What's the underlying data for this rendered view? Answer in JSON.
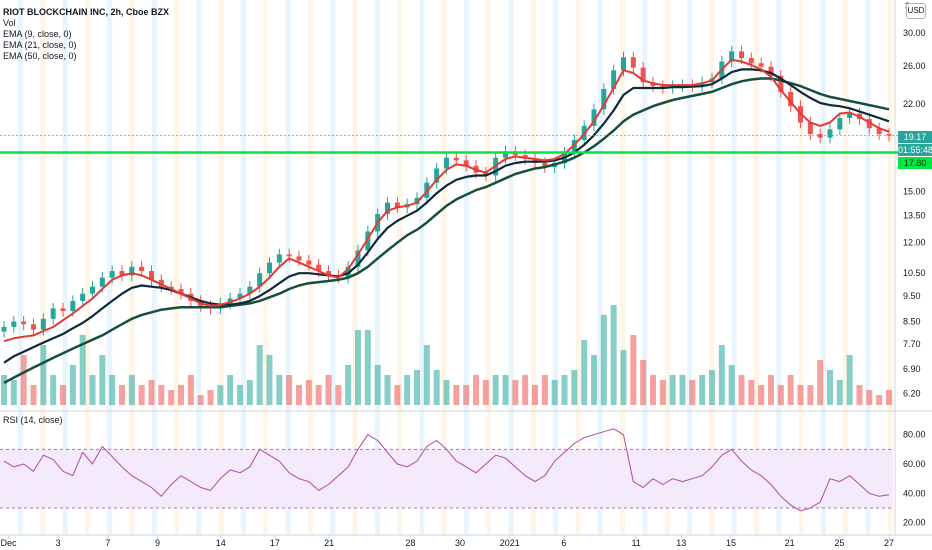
{
  "header": {
    "title": "RIOT BLOCKCHAIN INC, 2h, Cboe BZX",
    "vol_label": "Vol",
    "ema1_label": "EMA (9, close, 0)",
    "ema2_label": "EMA (21, close, 0)",
    "ema3_label": "EMA (50, close, 0)",
    "currency_button": "USD",
    "top_axis_partial": "3"
  },
  "rsi": {
    "label": "RSI (14, close)",
    "ticks": [
      "80.00",
      "60.00",
      "40.00",
      "20.00"
    ],
    "band_upper": 70,
    "band_lower": 30
  },
  "price_axis": {
    "ticks": [
      "30.00",
      "26.00",
      "22.00",
      "19.17",
      "17.80",
      "15.00",
      "13.50",
      "12.00",
      "10.50",
      "9.50",
      "8.50",
      "7.70",
      "6.90",
      "6.20"
    ],
    "last_price": "19.17",
    "countdown": "01:55:48",
    "horizontal_line_value": "17.80"
  },
  "time_axis": {
    "ticks": [
      "Dec",
      "3",
      "7",
      "9",
      "14",
      "17",
      "21",
      "28",
      "30",
      "2021",
      "6",
      "11",
      "13",
      "15",
      "21",
      "25",
      "27"
    ]
  },
  "colors": {
    "up": "#26a69a",
    "down": "#ef5350",
    "ema9": "#e53935",
    "ema21": "#0d2a3a",
    "ema50": "#174f3e",
    "hline": "#00e640",
    "rsi_line": "#b04aa5",
    "rsi_band": "#f2e6fb"
  },
  "chart_data": {
    "type": "line",
    "title": "RIOT BLOCKCHAIN INC, 2h, Cboe BZX",
    "y_scale": "log",
    "ylim": [
      5.9,
      31.5
    ],
    "price": [
      8.3,
      8.5,
      8.4,
      8.2,
      8.6,
      9.0,
      8.9,
      9.3,
      9.6,
      9.9,
      10.3,
      10.6,
      10.4,
      10.8,
      10.6,
      10.2,
      9.9,
      9.8,
      9.6,
      9.3,
      9.1,
      9.0,
      9.2,
      9.4,
      9.6,
      9.9,
      10.5,
      11.0,
      11.4,
      11.3,
      11.1,
      10.9,
      10.6,
      10.4,
      10.3,
      10.8,
      11.6,
      12.6,
      13.6,
      14.3,
      14.0,
      14.2,
      14.6,
      15.6,
      16.6,
      17.4,
      17.2,
      16.8,
      16.3,
      16.1,
      17.4,
      17.9,
      17.6,
      17.3,
      17.0,
      16.7,
      17.0,
      17.8,
      18.8,
      20.0,
      21.5,
      23.5,
      25.5,
      27.0,
      25.8,
      24.2,
      23.8,
      23.6,
      23.8,
      23.9,
      23.8,
      24.2,
      24.6,
      26.5,
      27.7,
      26.9,
      26.3,
      25.9,
      24.9,
      23.2,
      21.8,
      20.3,
      19.3,
      19.0,
      19.7,
      20.7,
      21.1,
      20.6,
      19.8,
      19.3,
      19.17
    ],
    "ema9": [
      7.8,
      7.9,
      7.95,
      8.0,
      8.15,
      8.3,
      8.55,
      8.8,
      9.1,
      9.4,
      9.8,
      10.2,
      10.4,
      10.5,
      10.4,
      10.2,
      10.0,
      9.8,
      9.6,
      9.4,
      9.2,
      9.1,
      9.15,
      9.25,
      9.4,
      9.6,
      9.9,
      10.3,
      10.8,
      11.2,
      11.0,
      10.8,
      10.6,
      10.4,
      10.3,
      10.7,
      11.4,
      12.2,
      13.1,
      13.8,
      14.0,
      14.1,
      14.3,
      15.0,
      15.8,
      16.5,
      16.9,
      16.8,
      16.5,
      16.3,
      16.8,
      17.3,
      17.5,
      17.4,
      17.3,
      17.2,
      17.3,
      17.7,
      18.4,
      19.3,
      20.4,
      21.9,
      23.6,
      25.5,
      25.2,
      24.4,
      24.1,
      23.9,
      23.9,
      23.9,
      23.9,
      24.1,
      24.4,
      25.6,
      26.7,
      26.5,
      26.1,
      25.6,
      24.8,
      23.4,
      22.2,
      21.1,
      20.3,
      20.0,
      20.3,
      21.1,
      21.2,
      20.8,
      20.3,
      19.8,
      19.5
    ],
    "ema21": [
      7.1,
      7.3,
      7.45,
      7.6,
      7.75,
      7.9,
      8.05,
      8.25,
      8.45,
      8.7,
      9.0,
      9.3,
      9.6,
      9.85,
      9.95,
      9.9,
      9.85,
      9.75,
      9.6,
      9.45,
      9.3,
      9.2,
      9.15,
      9.15,
      9.2,
      9.3,
      9.5,
      9.75,
      10.05,
      10.35,
      10.5,
      10.5,
      10.45,
      10.4,
      10.35,
      10.5,
      10.9,
      11.5,
      12.2,
      12.8,
      13.2,
      13.5,
      13.8,
      14.3,
      14.9,
      15.4,
      15.8,
      16.0,
      16.1,
      16.1,
      16.4,
      16.8,
      17.0,
      17.1,
      17.1,
      17.1,
      17.2,
      17.4,
      17.8,
      18.4,
      19.2,
      20.2,
      21.4,
      22.9,
      23.6,
      23.6,
      23.6,
      23.6,
      23.7,
      23.7,
      23.75,
      23.8,
      24.0,
      24.6,
      25.3,
      25.6,
      25.6,
      25.5,
      25.2,
      24.6,
      23.9,
      23.2,
      22.6,
      22.1,
      21.9,
      21.8,
      21.6,
      21.3,
      21.0,
      20.7,
      20.4
    ],
    "ema50": [
      6.5,
      6.65,
      6.8,
      6.95,
      7.1,
      7.25,
      7.4,
      7.55,
      7.7,
      7.85,
      8.0,
      8.2,
      8.4,
      8.6,
      8.75,
      8.85,
      8.95,
      9.0,
      9.05,
      9.05,
      9.05,
      9.05,
      9.05,
      9.1,
      9.15,
      9.2,
      9.3,
      9.45,
      9.6,
      9.8,
      9.95,
      10.05,
      10.1,
      10.15,
      10.2,
      10.3,
      10.5,
      10.8,
      11.2,
      11.6,
      12.0,
      12.4,
      12.7,
      13.1,
      13.6,
      14.1,
      14.5,
      14.8,
      15.1,
      15.3,
      15.6,
      15.9,
      16.2,
      16.4,
      16.6,
      16.7,
      16.9,
      17.1,
      17.4,
      17.8,
      18.3,
      18.9,
      19.6,
      20.4,
      21.0,
      21.4,
      21.8,
      22.1,
      22.4,
      22.6,
      22.8,
      23.0,
      23.2,
      23.6,
      24.0,
      24.3,
      24.5,
      24.6,
      24.6,
      24.4,
      24.1,
      23.8,
      23.4,
      23.0,
      22.7,
      22.5,
      22.3,
      22.1,
      21.9,
      21.7,
      21.5
    ],
    "rsi": [
      62,
      58,
      60,
      55,
      66,
      63,
      55,
      52,
      68,
      60,
      72,
      65,
      58,
      52,
      48,
      44,
      38,
      46,
      52,
      48,
      44,
      42,
      50,
      56,
      54,
      58,
      70,
      66,
      62,
      54,
      50,
      48,
      42,
      46,
      52,
      58,
      70,
      80,
      76,
      68,
      60,
      58,
      62,
      72,
      76,
      70,
      62,
      58,
      54,
      60,
      66,
      64,
      58,
      52,
      48,
      52,
      62,
      68,
      74,
      78,
      80,
      82,
      84,
      80,
      48,
      44,
      50,
      46,
      50,
      48,
      50,
      52,
      58,
      66,
      70,
      62,
      56,
      52,
      46,
      38,
      32,
      28,
      30,
      34,
      50,
      48,
      52,
      46,
      40,
      38,
      39
    ],
    "volume": [
      0.3,
      0.25,
      0.5,
      0.2,
      0.6,
      0.3,
      0.2,
      0.4,
      0.7,
      0.3,
      0.5,
      0.3,
      0.2,
      0.3,
      0.2,
      0.25,
      0.2,
      0.15,
      0.2,
      0.3,
      0.1,
      0.15,
      0.2,
      0.3,
      0.2,
      0.25,
      0.6,
      0.5,
      0.3,
      0.3,
      0.2,
      0.25,
      0.2,
      0.3,
      0.2,
      0.4,
      0.75,
      0.75,
      0.4,
      0.3,
      0.2,
      0.3,
      0.35,
      0.6,
      0.35,
      0.25,
      0.2,
      0.2,
      0.3,
      0.25,
      0.3,
      0.3,
      0.25,
      0.3,
      0.2,
      0.3,
      0.25,
      0.3,
      0.35,
      0.65,
      0.5,
      0.9,
      1.0,
      0.55,
      0.7,
      0.45,
      0.3,
      0.25,
      0.3,
      0.3,
      0.25,
      0.3,
      0.35,
      0.6,
      0.4,
      0.3,
      0.25,
      0.2,
      0.3,
      0.2,
      0.3,
      0.2,
      0.2,
      0.45,
      0.35,
      0.25,
      0.5,
      0.2,
      0.15,
      0.1,
      0.15
    ]
  }
}
